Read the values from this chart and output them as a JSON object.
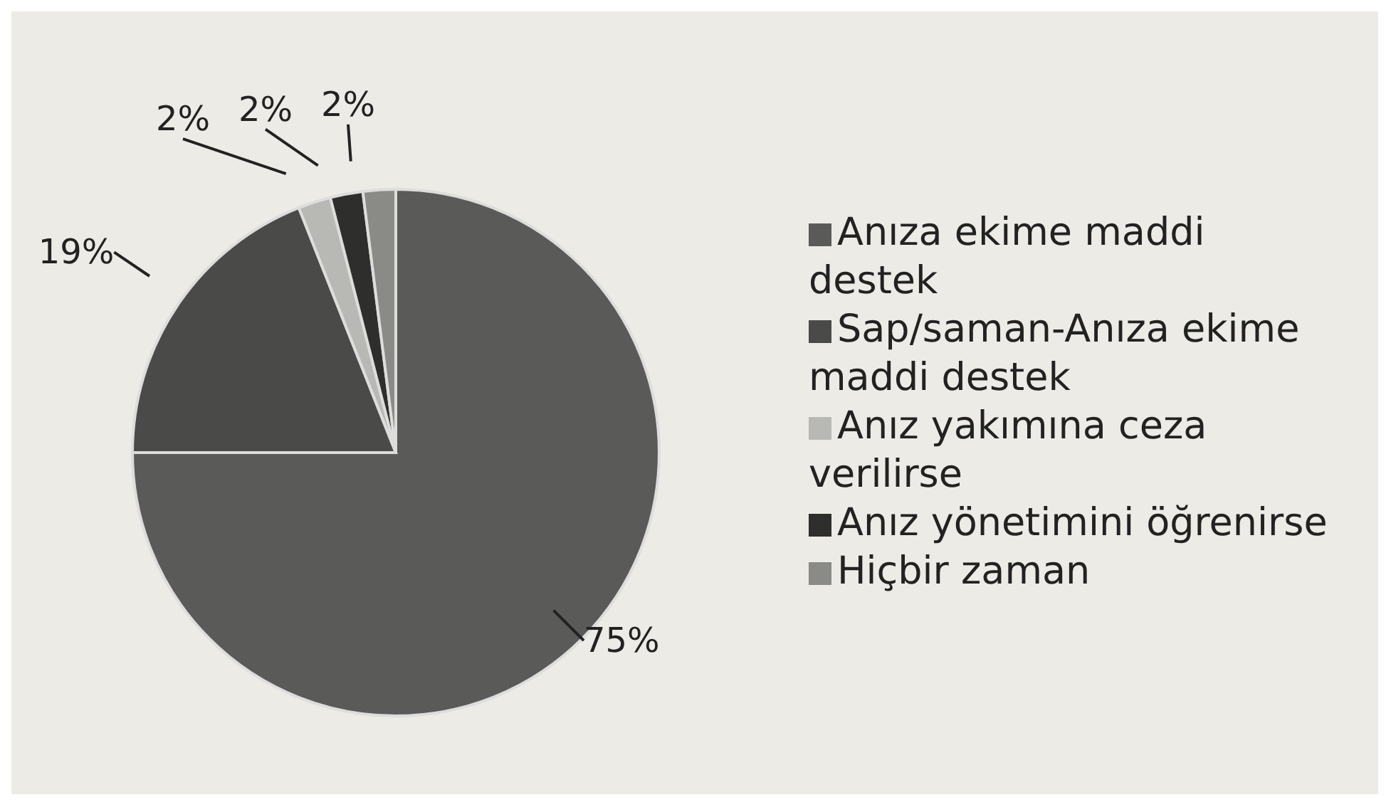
{
  "chart_data": {
    "type": "pie",
    "categories": [
      "Anıza ekime maddi destek",
      "Sap/saman-Anıza ekime maddi destek",
      "Anız yakımına ceza verilirse",
      "Anız yönetimini öğrenirse",
      "Hiçbir zaman"
    ],
    "values": [
      75,
      19,
      2,
      2,
      2
    ],
    "value_labels": [
      "75%",
      "19%",
      "2%",
      "2%",
      "2%"
    ],
    "colors": [
      "#5a5a58",
      "#4a4a48",
      "#b8b8b4",
      "#2e2e2c",
      "#8a8a86"
    ],
    "legend": "right"
  }
}
